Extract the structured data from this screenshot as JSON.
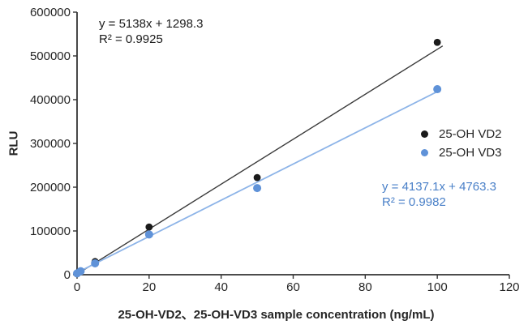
{
  "chart_data": {
    "type": "scatter",
    "title": "",
    "xlabel": "25-OH-VD2、25-OH-VD3 sample concentration (ng/mL)",
    "ylabel": "RLU",
    "xlim": [
      0,
      120
    ],
    "ylim": [
      0,
      600000
    ],
    "xticks": [
      0,
      20,
      40,
      60,
      80,
      100,
      120
    ],
    "yticks": [
      0,
      100000,
      200000,
      300000,
      400000,
      500000,
      600000
    ],
    "grid": false,
    "legend_position": "right-middle",
    "x": [
      0,
      1,
      5,
      20,
      50,
      100
    ],
    "series": [
      {
        "name": "25-OH VD2",
        "values": [
          2000,
          7000,
          30000,
          109000,
          222000,
          531000
        ],
        "marker_color": "#1b1b1b",
        "line_color": "#3a3a3a",
        "trendline": {
          "slope": 5138,
          "intercept": 1298.3,
          "x_start": 0,
          "x_end": 101.5
        },
        "equation": "y = 5138x + 1298.3",
        "r2": "R² = 0.9925",
        "equation_color": "#1b1b1b",
        "marker_radius": 4.4,
        "line_width": 1.4
      },
      {
        "name": "25-OH VD3",
        "values": [
          3000,
          8000,
          26000,
          92000,
          198000,
          424000
        ],
        "marker_color": "#5f92d8",
        "line_color": "#8db4e8",
        "trendline": {
          "slope": 4137.1,
          "intercept": 4763.3,
          "x_start": 0,
          "x_end": 100.5
        },
        "equation": "y = 4137.1x + 4763.3",
        "r2": "R² = 0.9982",
        "equation_color": "#4a80c8",
        "marker_radius": 5,
        "line_width": 1.8
      }
    ],
    "axis_color": "#333333",
    "tick_label_color": "#262626",
    "tick_label_font_size": 15
  }
}
